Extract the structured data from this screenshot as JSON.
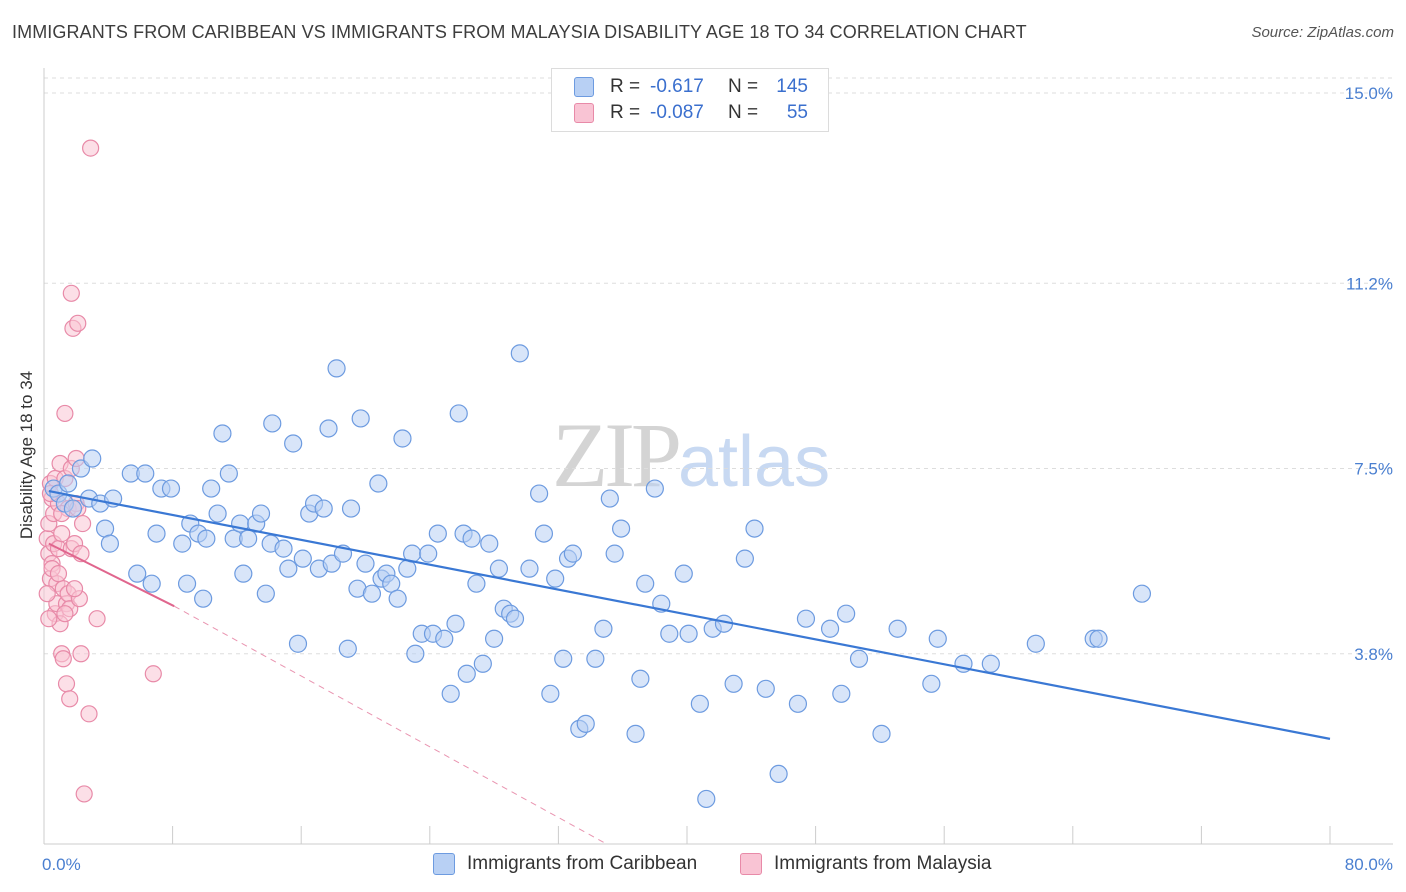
{
  "title": "IMMIGRANTS FROM CARIBBEAN VS IMMIGRANTS FROM MALAYSIA DISABILITY AGE 18 TO 34 CORRELATION CHART",
  "source": "Source: ZipAtlas.com",
  "watermark": {
    "zip": "ZIP",
    "atlas": "atlas"
  },
  "legend": {
    "r_label": "R =",
    "n_label": "N =",
    "series1": {
      "r": "-0.617",
      "n": "145"
    },
    "series2": {
      "r": "-0.087",
      "n": "55"
    }
  },
  "bottom_legend": {
    "series1": "Immigrants from Caribbean",
    "series2": "Immigrants from Malaysia"
  },
  "colors": {
    "blue_fill": "#b8d0f4",
    "blue_stroke": "#6d9be0",
    "blue_line": "#3a78d4",
    "pink_fill": "#f9c4d4",
    "pink_stroke": "#e88aa8",
    "pink_line": "#e0668e",
    "tick": "#4a7fd0",
    "grid": "#dddddd"
  },
  "chart_data": {
    "type": "scatter",
    "title": "IMMIGRANTS FROM CARIBBEAN VS IMMIGRANTS FROM MALAYSIA DISABILITY AGE 18 TO 34 CORRELATION CHART",
    "xlabel": "",
    "ylabel": "Disability Age 18 to 34",
    "xlim": [
      0,
      80
    ],
    "ylim": [
      0,
      15.5
    ],
    "x_tick_labels": [
      "0.0%",
      "80.0%"
    ],
    "y_ticks": [
      3.8,
      7.5,
      11.2,
      15.0
    ],
    "y_tick_labels": [
      "3.8%",
      "7.5%",
      "11.2%",
      "15.0%"
    ],
    "series": [
      {
        "name": "Immigrants from Caribbean",
        "trend": {
          "x": [
            0.3,
            80.0
          ],
          "y": [
            7.05,
            2.1
          ]
        },
        "points": [
          [
            0.6,
            7.1
          ],
          [
            0.9,
            7.0
          ],
          [
            1.3,
            6.8
          ],
          [
            1.5,
            7.2
          ],
          [
            1.8,
            6.7
          ],
          [
            2.3,
            7.5
          ],
          [
            2.8,
            6.9
          ],
          [
            3.0,
            7.7
          ],
          [
            3.5,
            6.8
          ],
          [
            3.8,
            6.3
          ],
          [
            4.1,
            6.0
          ],
          [
            4.3,
            6.9
          ],
          [
            5.4,
            7.4
          ],
          [
            5.8,
            5.4
          ],
          [
            6.3,
            7.4
          ],
          [
            6.7,
            5.2
          ],
          [
            7.0,
            6.2
          ],
          [
            7.3,
            7.1
          ],
          [
            7.9,
            7.1
          ],
          [
            8.6,
            6.0
          ],
          [
            8.9,
            5.2
          ],
          [
            9.1,
            6.4
          ],
          [
            9.6,
            6.2
          ],
          [
            9.9,
            4.9
          ],
          [
            10.1,
            6.1
          ],
          [
            10.4,
            7.1
          ],
          [
            10.8,
            6.6
          ],
          [
            11.1,
            8.2
          ],
          [
            11.5,
            7.4
          ],
          [
            11.8,
            6.1
          ],
          [
            12.2,
            6.4
          ],
          [
            12.4,
            5.4
          ],
          [
            12.7,
            6.1
          ],
          [
            13.2,
            6.4
          ],
          [
            13.5,
            6.6
          ],
          [
            13.8,
            5.0
          ],
          [
            14.1,
            6.0
          ],
          [
            14.2,
            8.4
          ],
          [
            14.9,
            5.9
          ],
          [
            15.2,
            5.5
          ],
          [
            15.5,
            8.0
          ],
          [
            15.8,
            4.0
          ],
          [
            16.1,
            5.7
          ],
          [
            16.5,
            6.6
          ],
          [
            16.8,
            6.8
          ],
          [
            17.1,
            5.5
          ],
          [
            17.4,
            6.7
          ],
          [
            17.7,
            8.3
          ],
          [
            17.9,
            5.6
          ],
          [
            18.2,
            9.5
          ],
          [
            18.6,
            5.8
          ],
          [
            18.9,
            3.9
          ],
          [
            19.1,
            6.7
          ],
          [
            19.5,
            5.1
          ],
          [
            19.7,
            8.5
          ],
          [
            20.0,
            5.6
          ],
          [
            20.4,
            5.0
          ],
          [
            20.8,
            7.2
          ],
          [
            21.0,
            5.3
          ],
          [
            21.3,
            5.4
          ],
          [
            21.6,
            5.2
          ],
          [
            22.0,
            4.9
          ],
          [
            22.3,
            8.1
          ],
          [
            22.6,
            5.5
          ],
          [
            22.9,
            5.8
          ],
          [
            23.1,
            3.8
          ],
          [
            23.5,
            4.2
          ],
          [
            23.9,
            5.8
          ],
          [
            24.2,
            4.2
          ],
          [
            24.5,
            6.2
          ],
          [
            24.9,
            4.1
          ],
          [
            25.3,
            3.0
          ],
          [
            25.6,
            4.4
          ],
          [
            25.8,
            8.6
          ],
          [
            26.1,
            6.2
          ],
          [
            26.3,
            3.4
          ],
          [
            26.6,
            6.1
          ],
          [
            26.9,
            5.2
          ],
          [
            27.3,
            3.6
          ],
          [
            27.7,
            6.0
          ],
          [
            28.0,
            4.1
          ],
          [
            28.3,
            5.5
          ],
          [
            28.6,
            4.7
          ],
          [
            29.0,
            4.6
          ],
          [
            29.3,
            4.5
          ],
          [
            29.6,
            9.8
          ],
          [
            30.2,
            5.5
          ],
          [
            30.8,
            7.0
          ],
          [
            31.1,
            6.2
          ],
          [
            31.5,
            3.0
          ],
          [
            31.8,
            5.3
          ],
          [
            32.3,
            3.7
          ],
          [
            32.6,
            5.7
          ],
          [
            32.9,
            5.8
          ],
          [
            33.3,
            2.3
          ],
          [
            33.7,
            2.4
          ],
          [
            34.3,
            3.7
          ],
          [
            34.8,
            4.3
          ],
          [
            35.2,
            6.9
          ],
          [
            35.5,
            5.8
          ],
          [
            35.9,
            6.3
          ],
          [
            36.8,
            2.2
          ],
          [
            37.1,
            3.3
          ],
          [
            37.4,
            5.2
          ],
          [
            38.0,
            7.1
          ],
          [
            38.4,
            4.8
          ],
          [
            38.9,
            4.2
          ],
          [
            39.8,
            5.4
          ],
          [
            40.1,
            4.2
          ],
          [
            40.8,
            2.8
          ],
          [
            41.2,
            0.9
          ],
          [
            41.6,
            4.3
          ],
          [
            42.3,
            4.4
          ],
          [
            42.9,
            3.2
          ],
          [
            43.6,
            5.7
          ],
          [
            44.2,
            6.3
          ],
          [
            44.9,
            3.1
          ],
          [
            45.7,
            1.4
          ],
          [
            46.9,
            2.8
          ],
          [
            47.4,
            4.5
          ],
          [
            48.9,
            4.3
          ],
          [
            49.6,
            3.0
          ],
          [
            49.9,
            4.6
          ],
          [
            50.7,
            3.7
          ],
          [
            52.1,
            2.2
          ],
          [
            53.1,
            4.3
          ],
          [
            55.2,
            3.2
          ],
          [
            55.6,
            4.1
          ],
          [
            57.2,
            3.6
          ],
          [
            58.9,
            3.6
          ],
          [
            61.7,
            4.0
          ],
          [
            65.3,
            4.1
          ],
          [
            65.6,
            4.1
          ],
          [
            68.3,
            5.0
          ]
        ]
      },
      {
        "name": "Immigrants from Malaysia",
        "trend_solid": {
          "x": [
            0.3,
            8.1
          ],
          "y": [
            6.0,
            4.75
          ]
        },
        "trend_dashed": {
          "x": [
            8.1,
            35.0
          ],
          "y": [
            4.75,
            0.0
          ]
        },
        "points": [
          [
            0.2,
            6.1
          ],
          [
            0.3,
            5.8
          ],
          [
            0.3,
            6.4
          ],
          [
            0.4,
            5.3
          ],
          [
            0.4,
            7.2
          ],
          [
            0.5,
            6.9
          ],
          [
            0.5,
            5.6
          ],
          [
            0.6,
            6.6
          ],
          [
            0.6,
            6.0
          ],
          [
            0.7,
            4.6
          ],
          [
            0.7,
            7.3
          ],
          [
            0.8,
            5.2
          ],
          [
            0.8,
            4.8
          ],
          [
            0.9,
            5.9
          ],
          [
            0.9,
            6.8
          ],
          [
            1.0,
            7.6
          ],
          [
            1.0,
            4.4
          ],
          [
            1.1,
            3.8
          ],
          [
            1.1,
            6.2
          ],
          [
            1.2,
            3.7
          ],
          [
            1.2,
            5.1
          ],
          [
            1.3,
            8.6
          ],
          [
            1.3,
            7.3
          ],
          [
            1.4,
            3.2
          ],
          [
            1.4,
            4.8
          ],
          [
            1.5,
            6.7
          ],
          [
            1.5,
            5.0
          ],
          [
            1.6,
            2.9
          ],
          [
            1.6,
            4.7
          ],
          [
            1.7,
            5.9
          ],
          [
            1.7,
            7.5
          ],
          [
            1.7,
            11.0
          ],
          [
            1.8,
            10.3
          ],
          [
            1.9,
            6.0
          ],
          [
            2.0,
            7.7
          ],
          [
            2.0,
            6.8
          ],
          [
            2.1,
            6.7
          ],
          [
            2.1,
            10.4
          ],
          [
            2.2,
            4.9
          ],
          [
            2.3,
            5.8
          ],
          [
            2.3,
            3.8
          ],
          [
            2.4,
            6.4
          ],
          [
            2.5,
            1.0
          ],
          [
            2.9,
            13.9
          ],
          [
            2.8,
            2.6
          ],
          [
            3.3,
            4.5
          ],
          [
            6.8,
            3.4
          ],
          [
            0.2,
            5.0
          ],
          [
            0.3,
            4.5
          ],
          [
            0.5,
            5.5
          ],
          [
            0.9,
            5.4
          ],
          [
            1.1,
            6.6
          ],
          [
            1.3,
            4.6
          ],
          [
            1.9,
            5.1
          ],
          [
            0.4,
            7.0
          ]
        ]
      }
    ]
  }
}
